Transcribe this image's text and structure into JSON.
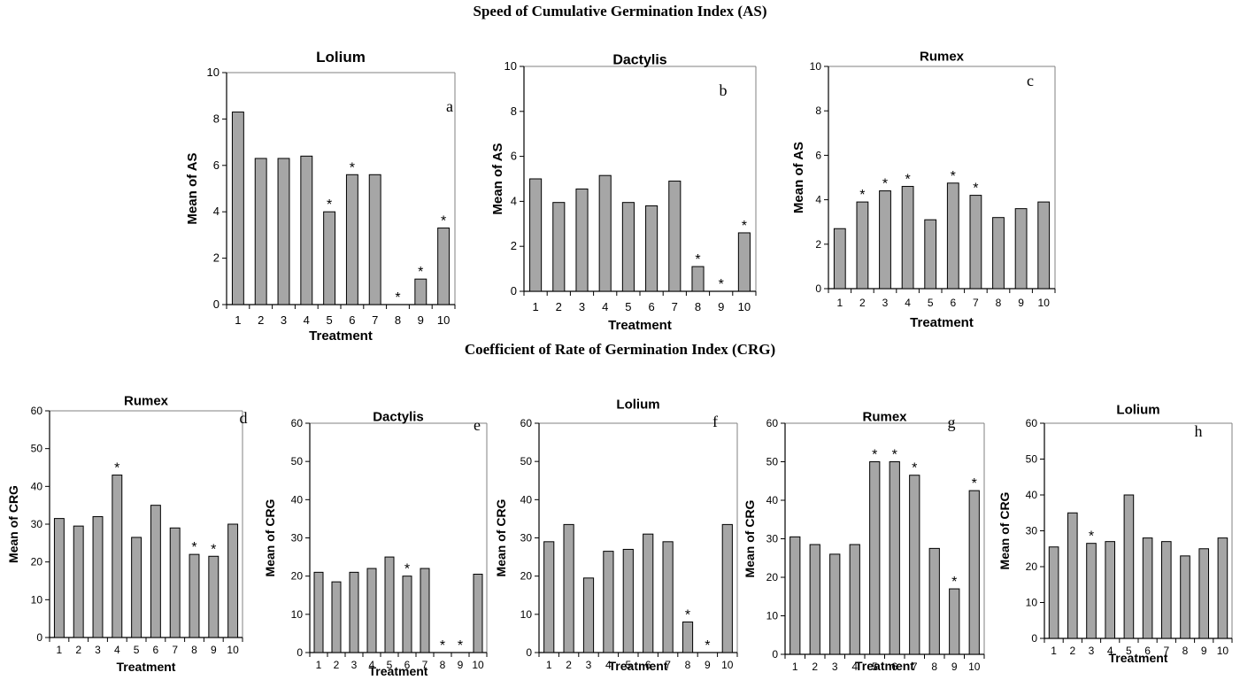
{
  "sections": {
    "as_title": "Speed of Cumulative Germination Index (AS)",
    "crg_title": "Coefficient of Rate of Germination Index (CRG)"
  },
  "colors": {
    "bar_fill": "#a6a6a6",
    "bar_stroke": "#000000",
    "axis": "#000000",
    "frame": "#808080"
  },
  "chart_data": [
    {
      "id": "a",
      "type": "bar",
      "title": "Lolium",
      "panel_label": "a",
      "xlabel": "Treatment",
      "ylabel": "Mean of AS",
      "ylim": [
        0,
        10
      ],
      "yticks": [
        0,
        2,
        4,
        6,
        8,
        10
      ],
      "categories": [
        "1",
        "2",
        "3",
        "4",
        "5",
        "6",
        "7",
        "8",
        "9",
        "10"
      ],
      "values": [
        8.3,
        6.3,
        6.3,
        6.4,
        4.0,
        5.6,
        5.6,
        0,
        1.1,
        3.3
      ],
      "significant": [
        false,
        false,
        false,
        false,
        true,
        true,
        false,
        true,
        true,
        true
      ],
      "star_symbol": "*"
    },
    {
      "id": "b",
      "type": "bar",
      "title": "Dactylis",
      "panel_label": "b",
      "xlabel": "Treatment",
      "ylabel": "Mean of AS",
      "ylim": [
        0,
        10
      ],
      "yticks": [
        0,
        2,
        4,
        6,
        8,
        10
      ],
      "categories": [
        "1",
        "2",
        "3",
        "4",
        "5",
        "6",
        "7",
        "8",
        "9",
        "10"
      ],
      "values": [
        5.0,
        3.95,
        4.55,
        5.15,
        3.95,
        3.8,
        4.9,
        1.1,
        0,
        2.6
      ],
      "significant": [
        false,
        false,
        false,
        false,
        false,
        false,
        false,
        true,
        true,
        true
      ],
      "star_symbol": "*"
    },
    {
      "id": "c",
      "type": "bar",
      "title": "Rumex",
      "panel_label": "c",
      "xlabel": "Treatment",
      "ylabel": "Mean of AS",
      "ylim": [
        0,
        10
      ],
      "yticks": [
        0,
        2,
        4,
        6,
        8,
        10
      ],
      "categories": [
        "1",
        "2",
        "3",
        "4",
        "5",
        "6",
        "7",
        "8",
        "9",
        "10"
      ],
      "values": [
        2.7,
        3.9,
        4.4,
        4.6,
        3.1,
        4.75,
        4.2,
        3.2,
        3.6,
        3.9
      ],
      "significant": [
        false,
        true,
        true,
        true,
        false,
        true,
        true,
        false,
        false,
        false
      ],
      "star_symbol": "*"
    },
    {
      "id": "d",
      "type": "bar",
      "title": "Rumex",
      "panel_label": "d",
      "xlabel": "Treatment",
      "ylabel": "Mean of CRG",
      "ylim": [
        0,
        60
      ],
      "yticks": [
        0,
        10,
        20,
        30,
        40,
        50,
        60
      ],
      "categories": [
        "1",
        "2",
        "3",
        "4",
        "5",
        "6",
        "7",
        "8",
        "9",
        "10"
      ],
      "values": [
        31.5,
        29.5,
        32,
        43,
        26.5,
        35,
        29,
        22,
        21.5,
        30
      ],
      "significant": [
        false,
        false,
        false,
        true,
        false,
        false,
        false,
        true,
        true,
        false
      ],
      "star_symbol": "*"
    },
    {
      "id": "e",
      "type": "bar",
      "title": "Dactylis",
      "panel_label": "e",
      "xlabel": "Treatment",
      "ylabel": "Mean of CRG",
      "ylim": [
        0,
        60
      ],
      "yticks": [
        0,
        10,
        20,
        30,
        40,
        50,
        60
      ],
      "categories": [
        "1",
        "2",
        "3",
        "4",
        "5",
        "6",
        "7",
        "8",
        "9",
        "10"
      ],
      "values": [
        21,
        18.5,
        21,
        22,
        25,
        20,
        22,
        0,
        0,
        20.5
      ],
      "significant": [
        false,
        false,
        false,
        false,
        false,
        true,
        false,
        true,
        true,
        false
      ],
      "star_symbol": "*"
    },
    {
      "id": "f",
      "type": "bar",
      "title": "Lolium",
      "panel_label": "f",
      "xlabel": "Treatment",
      "ylabel": "Mean of CRG",
      "ylim": [
        0,
        60
      ],
      "yticks": [
        0,
        10,
        20,
        30,
        40,
        50,
        60
      ],
      "categories": [
        "1",
        "2",
        "3",
        "4",
        "5",
        "6",
        "7",
        "8",
        "9",
        "10"
      ],
      "values": [
        29,
        33.5,
        19.5,
        26.5,
        27,
        31,
        29,
        8,
        0,
        33.5
      ],
      "significant": [
        false,
        false,
        false,
        false,
        false,
        false,
        false,
        true,
        true,
        false
      ],
      "star_symbol": "*"
    },
    {
      "id": "g",
      "type": "bar",
      "title": "Rumex",
      "panel_label": "g",
      "xlabel": "Treatment",
      "ylabel": "Mean of CRG",
      "ylim": [
        0,
        60
      ],
      "yticks": [
        0,
        10,
        20,
        30,
        40,
        50,
        60
      ],
      "categories": [
        "1",
        "2",
        "3",
        "4",
        "5",
        "6",
        "7",
        "8",
        "9",
        "10"
      ],
      "values": [
        30.5,
        28.5,
        26,
        28.5,
        50,
        50,
        46.5,
        27.5,
        17,
        42.5
      ],
      "significant": [
        false,
        false,
        false,
        false,
        true,
        true,
        true,
        false,
        true,
        true
      ],
      "star_symbol": "*"
    },
    {
      "id": "h",
      "type": "bar",
      "title": "Lolium",
      "panel_label": "h",
      "xlabel": "Treatment",
      "ylabel": "Mean of CRG",
      "ylim": [
        0,
        60
      ],
      "yticks": [
        0,
        10,
        20,
        30,
        40,
        50,
        60
      ],
      "categories": [
        "1",
        "2",
        "3",
        "4",
        "5",
        "6",
        "7",
        "8",
        "9",
        "10"
      ],
      "values": [
        25.5,
        35,
        26.5,
        27,
        40,
        28,
        27,
        23,
        25,
        28
      ],
      "significant": [
        false,
        false,
        true,
        false,
        false,
        false,
        false,
        false,
        false,
        false
      ],
      "star_symbol": "*"
    }
  ]
}
